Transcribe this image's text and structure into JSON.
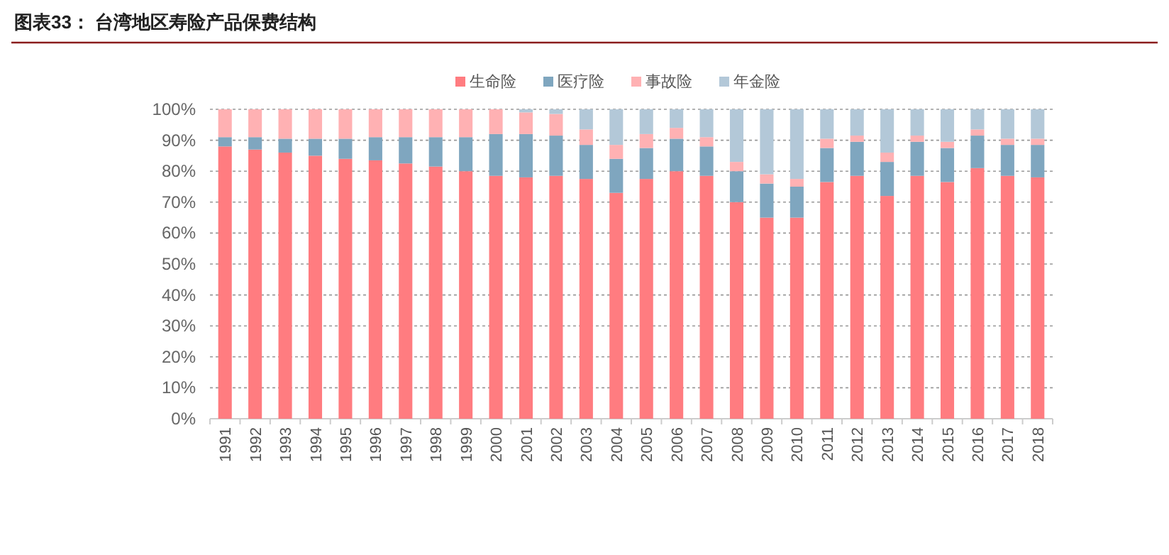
{
  "chart_data": {
    "type": "bar",
    "title": "图表33： 台湾地区寿险产品保费结构",
    "stacked": true,
    "legend": "top",
    "grid": "y",
    "categories": [
      "1991",
      "1992",
      "1993",
      "1994",
      "1995",
      "1996",
      "1997",
      "1998",
      "1999",
      "2000",
      "2001",
      "2002",
      "2003",
      "2004",
      "2005",
      "2006",
      "2007",
      "2008",
      "2009",
      "2010",
      "2011",
      "2012",
      "2013",
      "2014",
      "2015",
      "2016",
      "2017",
      "2018"
    ],
    "series": [
      {
        "name": "生命险",
        "color": "#ff7c80",
        "values": [
          88,
          87,
          86,
          85,
          84,
          83.5,
          82.5,
          81.5,
          80,
          78.5,
          78,
          78.5,
          77.5,
          73,
          77.5,
          80,
          78.5,
          70,
          65,
          65,
          76.5,
          78.5,
          72,
          78.5,
          76.5,
          81,
          78.5,
          78
        ]
      },
      {
        "name": "医疗险",
        "color": "#7fa6bf",
        "values": [
          3,
          4,
          4.5,
          5.5,
          6.5,
          7.5,
          8.5,
          9.5,
          11,
          13.5,
          14,
          13,
          11,
          11,
          10,
          10.5,
          9.5,
          10,
          11,
          10,
          11,
          11,
          11,
          11,
          11,
          10.5,
          10,
          10.5
        ]
      },
      {
        "name": "事故险",
        "color": "#ffb1b3",
        "values": [
          9,
          9,
          9.5,
          9.5,
          9.5,
          9,
          9,
          9,
          9,
          8,
          7,
          7,
          5,
          4.5,
          4.5,
          3.5,
          3,
          3,
          3,
          2.5,
          3,
          2,
          3,
          2,
          2,
          2,
          2,
          2
        ]
      },
      {
        "name": "年金险",
        "color": "#b3c8d8",
        "values": [
          0,
          0,
          0,
          0,
          0,
          0,
          0,
          0,
          0,
          0,
          1,
          1.5,
          6.5,
          11.5,
          8,
          6,
          9,
          17,
          21,
          22.5,
          9.5,
          8.5,
          14,
          8.5,
          10.5,
          6.5,
          9.5,
          9.5
        ]
      }
    ],
    "ylim": [
      0,
      100
    ],
    "yticks": [
      {
        "value": 0,
        "label": "0%"
      },
      {
        "value": 10,
        "label": "10%"
      },
      {
        "value": 20,
        "label": "20%"
      },
      {
        "value": 30,
        "label": "30%"
      },
      {
        "value": 40,
        "label": "40%"
      },
      {
        "value": 50,
        "label": "50%"
      },
      {
        "value": 60,
        "label": "60%"
      },
      {
        "value": 70,
        "label": "70%"
      },
      {
        "value": 80,
        "label": "80%"
      },
      {
        "value": 90,
        "label": "90%"
      },
      {
        "value": 100,
        "label": "100%"
      }
    ]
  }
}
